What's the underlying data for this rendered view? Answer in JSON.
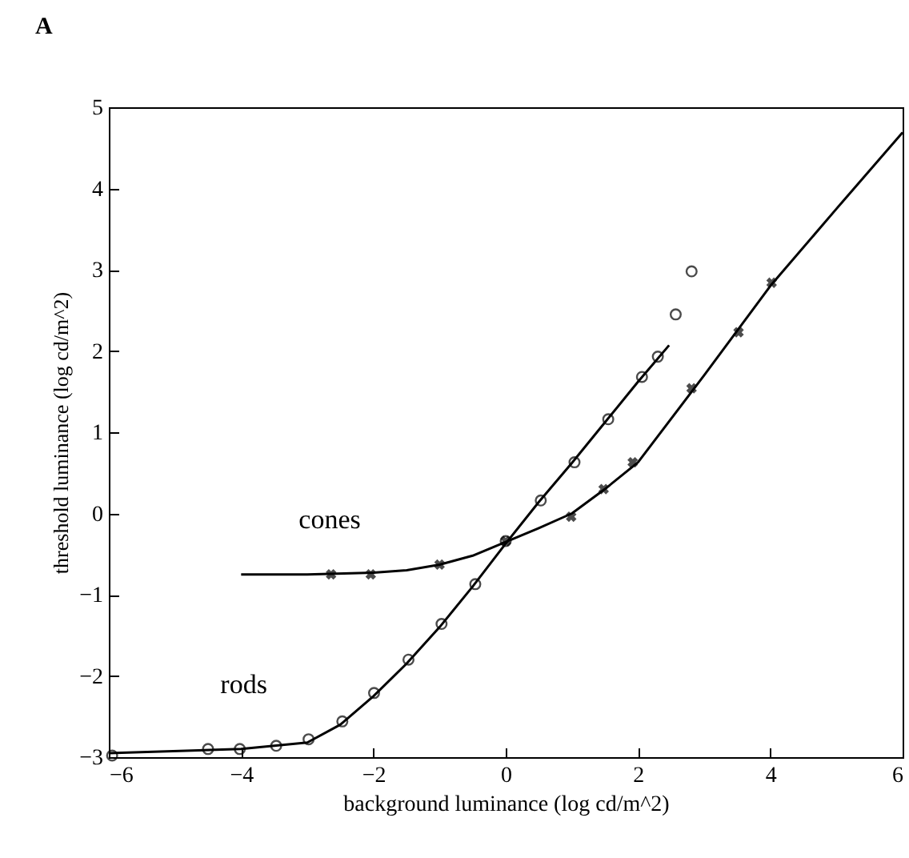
{
  "chart_data": {
    "type": "scatter",
    "title": "A",
    "xlabel": "background luminance (log cd/m^2)",
    "ylabel": "threshold luminance (log cd/m^2)",
    "xlim": [
      -6,
      6
    ],
    "xticks": [
      -6,
      -4,
      -2,
      0,
      2,
      4,
      6
    ],
    "ylim": [
      -3,
      5
    ],
    "yticks": [
      -3,
      -2,
      -1,
      0,
      1,
      2,
      3,
      4,
      5
    ],
    "grid": false,
    "legend": false,
    "series": [
      {
        "type": "line",
        "name": "rods",
        "color": "#000000",
        "marker": "none",
        "x": [
          -6,
          -4,
          -3,
          -2.5,
          -2,
          -1.5,
          -1,
          -0.5,
          0,
          0.5,
          1,
          1.5,
          2,
          2.47
        ],
        "values": [
          -2.95,
          -2.9,
          -2.82,
          -2.6,
          -2.25,
          -1.85,
          -1.4,
          -0.9,
          -0.37,
          0.14,
          0.62,
          1.12,
          1.62,
          2.07
        ]
      },
      {
        "type": "line",
        "name": "cones",
        "color": "#000000",
        "marker": "none",
        "x": [
          -4,
          -3,
          -2,
          -1.5,
          -1,
          -0.5,
          0,
          0.5,
          1,
          1.5,
          2,
          3,
          4,
          5,
          6
        ],
        "values": [
          -0.75,
          -0.75,
          -0.73,
          -0.7,
          -0.63,
          -0.52,
          -0.35,
          -0.18,
          0,
          0.3,
          0.63,
          1.7,
          2.8,
          3.75,
          4.69
        ]
      },
      {
        "type": "scatter",
        "color": "#000000",
        "marker": "circle",
        "x": [
          -5.95,
          -4.5,
          -4.02,
          -3.47,
          -2.98,
          -2.47,
          -1.99,
          -1.47,
          -0.97,
          -0.46,
          0,
          0.53,
          1.04,
          1.55,
          2.06,
          2.3,
          2.57,
          2.81
        ],
        "values": [
          -2.98,
          -2.9,
          -2.9,
          -2.86,
          -2.78,
          -2.56,
          -2.21,
          -1.8,
          -1.36,
          -0.87,
          -0.34,
          0.16,
          0.63,
          1.16,
          1.68,
          1.93,
          2.45,
          2.98
        ]
      },
      {
        "type": "scatter",
        "color": "#000000",
        "marker": "cross",
        "x": [
          -2.64,
          -2.04,
          -1,
          0,
          0.99,
          1.48,
          1.92,
          2.81,
          3.52,
          4.02
        ],
        "values": [
          -0.75,
          -0.75,
          -0.63,
          -0.34,
          -0.04,
          0.3,
          0.63,
          1.54,
          2.23,
          2.84
        ]
      }
    ]
  }
}
